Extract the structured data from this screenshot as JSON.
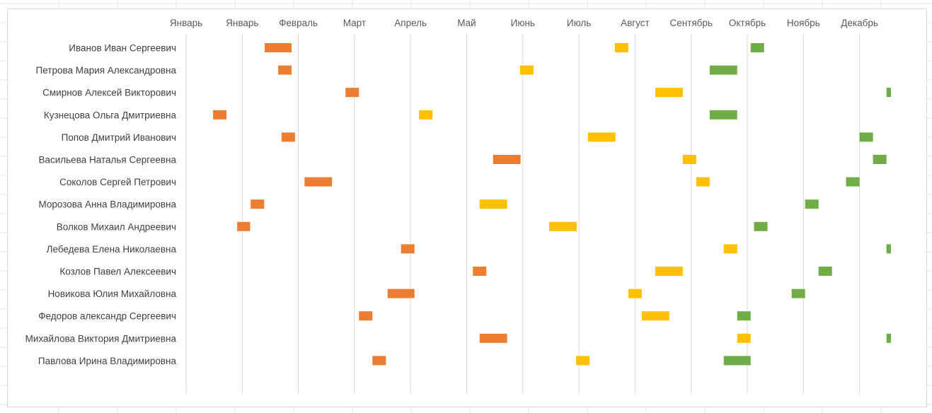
{
  "chart_data": {
    "type": "bar",
    "subtype": "gantt",
    "title": "",
    "xlabel": "",
    "ylabel": "",
    "x_unit": "months (0 = start of first column)",
    "xlim": [
      0,
      12.5
    ],
    "month_labels": [
      "Январь",
      "Январь",
      "Февраль",
      "Март",
      "Апрель",
      "Май",
      "Июнь",
      "Июль",
      "Август",
      "Сентябрь",
      "Октябрь",
      "Ноябрь",
      "Декабрь"
    ],
    "categories": [
      "Иванов Иван Сергеевич",
      "Петрова Мария Александровна",
      "Смирнов Алексей Викторович",
      "Кузнецова Ольга Дмитриевна",
      "Попов Дмитрий Иванович",
      "Васильева Наталья Сергеевна",
      "Соколов Сергей Петрович",
      "Морозова Анна Владимировна",
      "Волков Михаил Андреевич",
      "Лебедева Елена Николаевна",
      "Козлов Павел Алексеевич",
      "Новикова Юлия Михайловна",
      "Федоров александр Сергеевич",
      "Михайлова Виктория Дмитриевна",
      "Павлова Ирина Владимировна"
    ],
    "series": [
      {
        "color": "#ed7d31",
        "segments": [
          [
            1.4,
            1.88
          ],
          [
            1.64,
            1.88
          ],
          [
            2.84,
            3.08
          ],
          [
            0.48,
            0.72
          ],
          [
            1.7,
            1.94
          ],
          [
            5.47,
            5.96
          ],
          [
            2.11,
            2.6
          ],
          [
            1.15,
            1.39
          ],
          [
            0.91,
            1.14
          ],
          [
            3.83,
            4.07
          ],
          [
            5.11,
            5.35
          ],
          [
            3.59,
            4.07
          ],
          [
            3.08,
            3.32
          ],
          [
            5.23,
            5.72
          ],
          [
            3.32,
            3.56
          ]
        ]
      },
      {
        "color": "#ffc000",
        "segments": [
          [
            7.64,
            7.88
          ],
          [
            5.95,
            6.19
          ],
          [
            8.36,
            8.85
          ],
          [
            4.15,
            4.39
          ],
          [
            7.16,
            7.65
          ],
          [
            8.85,
            9.09
          ],
          [
            9.09,
            9.33
          ],
          [
            5.23,
            5.72
          ],
          [
            6.47,
            6.96
          ],
          [
            9.58,
            9.82
          ],
          [
            8.36,
            8.85
          ],
          [
            7.88,
            8.12
          ],
          [
            8.12,
            8.61
          ],
          [
            9.82,
            10.06
          ],
          [
            6.95,
            7.19
          ]
        ]
      },
      {
        "color": "#70ad47",
        "segments": [
          [
            10.06,
            10.3
          ],
          [
            9.33,
            9.82
          ],
          [
            12.48,
            12.56
          ],
          [
            9.33,
            9.82
          ],
          [
            12.0,
            12.24
          ],
          [
            12.24,
            12.48
          ],
          [
            11.76,
            12.0
          ],
          [
            11.03,
            11.27
          ],
          [
            10.12,
            10.36
          ],
          [
            12.48,
            12.56
          ],
          [
            11.27,
            11.51
          ],
          [
            10.79,
            11.03
          ],
          [
            9.82,
            10.06
          ],
          [
            12.48,
            12.56
          ],
          [
            9.58,
            10.06
          ]
        ]
      }
    ],
    "grid": true,
    "legend": "none"
  }
}
